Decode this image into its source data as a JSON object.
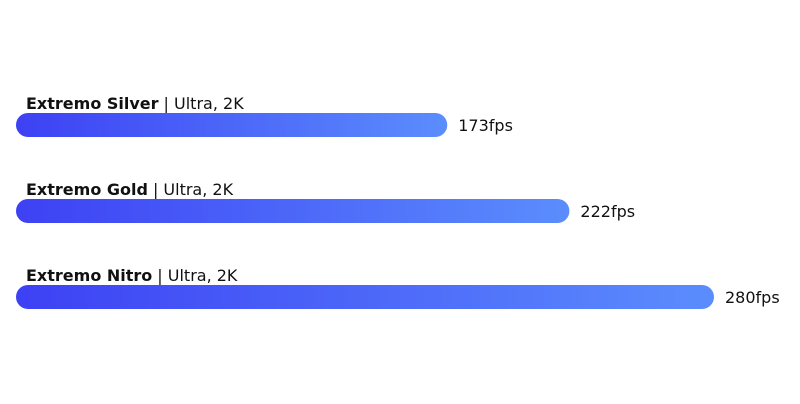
{
  "chart_data": {
    "type": "bar",
    "orientation": "horizontal",
    "categories": [
      "Extremo Silver",
      "Extremo Gold",
      "Extremo Nitro"
    ],
    "category_details": [
      "| Ultra, 2K",
      "| Ultra, 2K",
      "| Ultra, 2K"
    ],
    "values": [
      173,
      222,
      280
    ],
    "value_labels": [
      "173fps",
      "222fps",
      "280fps"
    ],
    "colors": [
      "#3d41f4",
      "#5b8dfd"
    ]
  }
}
